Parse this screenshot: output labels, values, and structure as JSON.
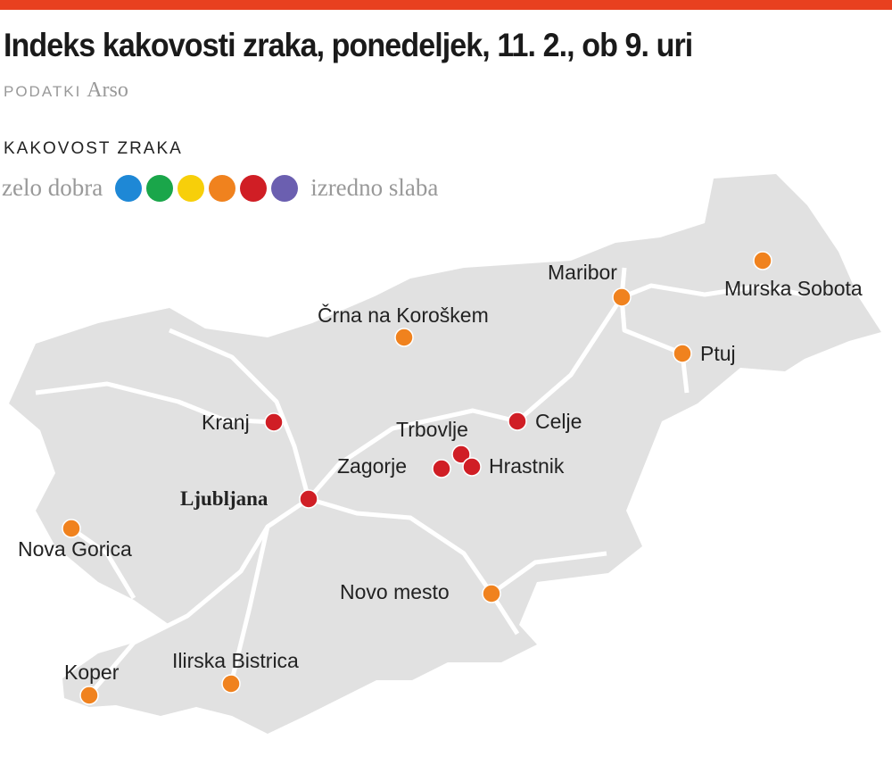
{
  "title": "Indeks kakovosti zraka, ponedeljek, 11. 2., ob 9. uri",
  "source": {
    "label": "PODATKI",
    "value": "Arso"
  },
  "legend": {
    "title": "KAKOVOST ZRAKA",
    "low_label": "zelo dobra",
    "high_label": "izredno slaba",
    "colors": [
      "#1e88d6",
      "#1aa64a",
      "#f7cf0a",
      "#f0821e",
      "#d01e25",
      "#6b5fb0"
    ]
  },
  "cities": [
    {
      "name": "Maribor",
      "level": 4
    },
    {
      "name": "Murska Sobota",
      "level": 4
    },
    {
      "name": "Črna na Koroškem",
      "level": 4
    },
    {
      "name": "Ptuj",
      "level": 4
    },
    {
      "name": "Kranj",
      "level": 5
    },
    {
      "name": "Celje",
      "level": 5
    },
    {
      "name": "Trbovlje",
      "level": 5
    },
    {
      "name": "Zagorje",
      "level": 5
    },
    {
      "name": "Hrastnik",
      "level": 5
    },
    {
      "name": "Ljubljana",
      "level": 5
    },
    {
      "name": "Nova Gorica",
      "level": 4
    },
    {
      "name": "Novo mesto",
      "level": 4
    },
    {
      "name": "Ilirska Bistrica",
      "level": 4
    },
    {
      "name": "Koper",
      "level": 4
    }
  ]
}
